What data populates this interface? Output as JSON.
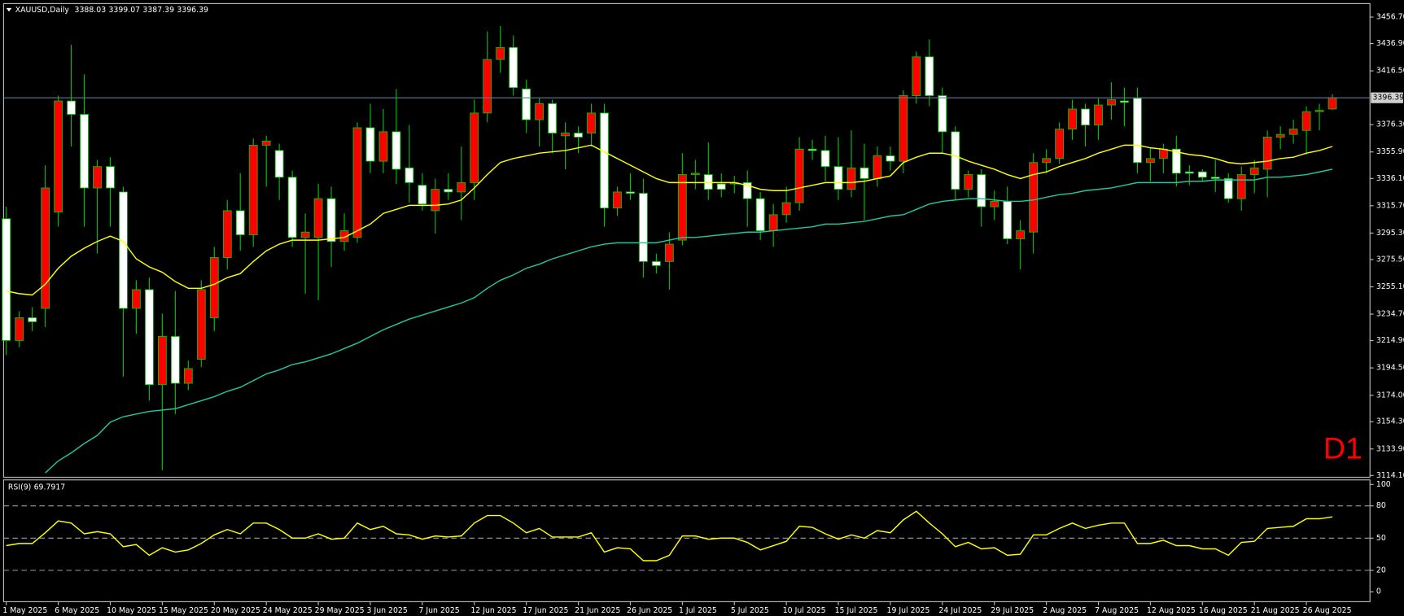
{
  "chart_data": [
    {
      "type": "candlestick",
      "title": "XAUUSD,Daily",
      "annotation": "D1",
      "up_color": "#ff0000",
      "down_color": "#ffffff",
      "wick_color": "#00c800",
      "bid_color": "#5f7d99",
      "categories": [
        "1 May 2025",
        null,
        null,
        null,
        "6 May 2025",
        null,
        null,
        null,
        "10 May 2025",
        null,
        null,
        null,
        "15 May 2025",
        null,
        null,
        null,
        "20 May 2025",
        null,
        null,
        null,
        "24 May 2025",
        null,
        null,
        null,
        "29 May 2025",
        null,
        null,
        null,
        "3 Jun 2025",
        null,
        null,
        null,
        "7 Jun 2025",
        null,
        null,
        null,
        "12 Jun 2025",
        null,
        null,
        null,
        "17 Jun 2025",
        null,
        null,
        null,
        "21 Jun 2025",
        null,
        null,
        null,
        "26 Jun 2025",
        null,
        null,
        null,
        "1 Jul 2025",
        null,
        null,
        null,
        "5 Jul 2025",
        null,
        null,
        null,
        "10 Jul 2025",
        null,
        null,
        null,
        "15 Jul 2025",
        null,
        null,
        null,
        "19 Jul 2025",
        null,
        null,
        null,
        "24 Jul 2025",
        null,
        null,
        null,
        "29 Jul 2025",
        null,
        null,
        null,
        "2 Aug 2025",
        null,
        null,
        null,
        "7 Aug 2025",
        null,
        null,
        null,
        "12 Aug 2025",
        null,
        null,
        null,
        "16 Aug 2025",
        null,
        null,
        null,
        "21 Aug 2025",
        null,
        null,
        null,
        "26 Aug 2025",
        null,
        null
      ],
      "open": [
        3306,
        3215,
        3232,
        3239,
        3311,
        3394,
        3384,
        3329,
        3345,
        3326,
        3239,
        3253,
        3182,
        3218,
        3183,
        3201,
        3232,
        3277,
        3312,
        3294,
        3361,
        3357,
        3337,
        3292,
        3292,
        3321,
        3289,
        3292,
        3374,
        3349,
        3371,
        3344,
        3331,
        3312,
        3328,
        3326,
        3333,
        3385,
        3425,
        3434,
        3403,
        3380,
        3392,
        3368,
        3370,
        3370,
        3385,
        3314,
        3326,
        3325,
        3274,
        3274,
        3290,
        3339,
        3339,
        3332,
        3332,
        3333,
        3321,
        3297,
        3309,
        3318,
        3358,
        3357,
        3345,
        3328,
        3344,
        3336,
        3353,
        3349,
        3398,
        3427,
        3398,
        3371,
        3328,
        3339,
        3315,
        3319,
        3291,
        3296,
        3348,
        3351,
        3373,
        3388,
        3376,
        3391,
        3394,
        3396,
        3348,
        3351,
        3358,
        3341,
        3341,
        3337,
        3336,
        3321,
        3339,
        3343,
        3367,
        3369,
        3372,
        3386,
        3388.03
      ],
      "high": [
        3315,
        3237,
        3240,
        3346,
        3398,
        3436,
        3414,
        3350,
        3352,
        3330,
        3260,
        3262,
        3235,
        3252,
        3200,
        3260,
        3285,
        3320,
        3340,
        3366,
        3368,
        3362,
        3342,
        3310,
        3332,
        3330,
        3310,
        3378,
        3392,
        3388,
        3403,
        3376,
        3340,
        3336,
        3340,
        3360,
        3395,
        3446,
        3450,
        3443,
        3410,
        3396,
        3395,
        3378,
        3375,
        3392,
        3392,
        3330,
        3340,
        3336,
        3280,
        3296,
        3355,
        3350,
        3363,
        3340,
        3338,
        3342,
        3326,
        3317,
        3330,
        3367,
        3365,
        3368,
        3367,
        3372,
        3362,
        3360,
        3360,
        3402,
        3431,
        3440,
        3404,
        3375,
        3342,
        3343,
        3327,
        3330,
        3305,
        3355,
        3358,
        3378,
        3395,
        3392,
        3396,
        3408,
        3404,
        3404,
        3359,
        3362,
        3368,
        3346,
        3343,
        3350,
        3340,
        3345,
        3350,
        3372,
        3375,
        3380,
        3390,
        3392,
        3399.07
      ],
      "low": [
        3204,
        3210,
        3222,
        3225,
        3300,
        3360,
        3300,
        3280,
        3300,
        3188,
        3220,
        3170,
        3118,
        3160,
        3178,
        3195,
        3222,
        3268,
        3282,
        3285,
        3330,
        3320,
        3285,
        3250,
        3245,
        3270,
        3282,
        3288,
        3340,
        3340,
        3332,
        3318,
        3312,
        3295,
        3320,
        3305,
        3320,
        3378,
        3415,
        3398,
        3370,
        3360,
        3355,
        3343,
        3355,
        3360,
        3300,
        3308,
        3320,
        3262,
        3265,
        3253,
        3286,
        3328,
        3320,
        3322,
        3325,
        3300,
        3290,
        3285,
        3303,
        3312,
        3350,
        3334,
        3320,
        3322,
        3305,
        3330,
        3342,
        3340,
        3392,
        3390,
        3355,
        3320,
        3322,
        3300,
        3305,
        3287,
        3268,
        3280,
        3340,
        3347,
        3365,
        3360,
        3365,
        3380,
        3375,
        3340,
        3334,
        3340,
        3330,
        3331,
        3334,
        3326,
        3318,
        3312,
        3325,
        3322,
        3358,
        3362,
        3354,
        3372,
        3387.39
      ],
      "close": [
        3215,
        3232,
        3229,
        3329,
        3394,
        3384,
        3329,
        3345,
        3329,
        3239,
        3253,
        3182,
        3218,
        3183,
        3194,
        3253,
        3277,
        3312,
        3294,
        3361,
        3364,
        3337,
        3292,
        3296,
        3321,
        3289,
        3297,
        3374,
        3349,
        3371,
        3343,
        3333,
        3317,
        3328,
        3326,
        3333,
        3385,
        3425,
        3434,
        3404,
        3380,
        3392,
        3370,
        3370,
        3367,
        3385,
        3314,
        3326,
        3325,
        3274,
        3271,
        3287,
        3339,
        3340,
        3328,
        3328,
        3333,
        3321,
        3297,
        3309,
        3318,
        3358,
        3357,
        3345,
        3328,
        3344,
        3336,
        3353,
        3349,
        3398,
        3427,
        3398,
        3371,
        3328,
        3339,
        3315,
        3319,
        3291,
        3297,
        3348,
        3351,
        3373,
        3388,
        3376,
        3391,
        3395,
        3393,
        3348,
        3351,
        3358,
        3340,
        3340,
        3337,
        3336,
        3321,
        3339,
        3344,
        3367,
        3369,
        3373,
        3386,
        3387,
        3396.39
      ],
      "overlays": [
        {
          "color": "#ffff00",
          "values": [
            3252,
            3250,
            3249,
            3257,
            3269,
            3278,
            3284,
            3289,
            3293,
            3289,
            3276,
            3270,
            3266,
            3259,
            3254,
            3254,
            3257,
            3262,
            3265,
            3274,
            3282,
            3287,
            3290,
            3290,
            3290,
            3291,
            3292,
            3297,
            3302,
            3310,
            3313,
            3316,
            3316,
            3316,
            3317,
            3320,
            3329,
            3339,
            3348,
            3351,
            3353,
            3355,
            3356,
            3357,
            3359,
            3361,
            3356,
            3351,
            3346,
            3341,
            3336,
            3333,
            3333,
            3333,
            3333,
            3333,
            3333,
            3331,
            3328,
            3327,
            3327,
            3329,
            3331,
            3333,
            3333,
            3333,
            3334,
            3336,
            3338,
            3348,
            3352,
            3355,
            3355,
            3353,
            3349,
            3346,
            3343,
            3339,
            3336,
            3339,
            3341,
            3345,
            3348,
            3351,
            3355,
            3358,
            3361,
            3361,
            3359,
            3358,
            3356,
            3354,
            3353,
            3351,
            3348,
            3347,
            3348,
            3349,
            3351,
            3352,
            3355,
            3357,
            3360
          ]
        },
        {
          "color": "#20c8a0",
          "values": [
            null,
            null,
            null,
            3116,
            3125,
            3131,
            3138,
            3144,
            3154,
            3158,
            3160,
            3162,
            3163,
            3164,
            3167,
            3170,
            3173,
            3177,
            3180,
            3185,
            3190,
            3193,
            3197,
            3199,
            3202,
            3205,
            3209,
            3213,
            3218,
            3223,
            3227,
            3231,
            3234,
            3237,
            3240,
            3243,
            3247,
            3254,
            3260,
            3264,
            3269,
            3272,
            3276,
            3279,
            3282,
            3285,
            3287,
            3288,
            3288,
            3288,
            3288,
            3290,
            3292,
            3292,
            3293,
            3294,
            3295,
            3296,
            3296,
            3297,
            3298,
            3299,
            3300,
            3302,
            3302,
            3303,
            3304,
            3306,
            3308,
            3309,
            3313,
            3317,
            3319,
            3320,
            3321,
            3321,
            3320,
            3319,
            3319,
            3320,
            3322,
            3324,
            3325,
            3327,
            3328,
            3329,
            3331,
            3333,
            3333,
            3333,
            3333,
            3334,
            3334,
            3335,
            3335,
            3335,
            3335,
            3337,
            3337,
            3338,
            3339,
            3341,
            3343
          ]
        }
      ],
      "ylim": [
        3112.8,
        3466.8
      ],
      "yticks": [
        {
          "value": 3456.7,
          "label": "3456.70"
        },
        {
          "value": 3436.9,
          "label": "3436.90"
        },
        {
          "value": 3416.5,
          "label": "3416.50"
        },
        {
          "value": 3376.3,
          "label": "3376.30"
        },
        {
          "value": 3355.9,
          "label": "3355.90"
        },
        {
          "value": 3336.1,
          "label": "3336.10"
        },
        {
          "value": 3315.7,
          "label": "3315.70"
        },
        {
          "value": 3295.3,
          "label": "3295.30"
        },
        {
          "value": 3275.5,
          "label": "3275.50"
        },
        {
          "value": 3255.1,
          "label": "3255.10"
        },
        {
          "value": 3234.7,
          "label": "3234.70"
        },
        {
          "value": 3214.9,
          "label": "3214.90"
        },
        {
          "value": 3194.5,
          "label": "3194.50"
        },
        {
          "value": 3174,
          "label": "3174.00"
        },
        {
          "value": 3154.3,
          "label": "3154.30"
        },
        {
          "value": 3133.9,
          "label": "3133.90"
        },
        {
          "value": 3114.1,
          "label": "3114.10"
        }
      ]
    },
    {
      "type": "line",
      "title": "RSI(9)",
      "color": "#ffff00",
      "values": [
        43,
        45,
        45,
        55,
        66,
        64,
        54,
        56,
        54,
        42,
        44,
        34,
        41,
        37,
        39,
        45,
        53,
        58,
        54,
        64,
        64,
        58,
        50,
        50,
        54,
        49,
        50,
        64,
        58,
        61,
        54,
        53,
        49,
        52,
        51,
        52,
        64,
        71,
        71,
        64,
        55,
        59,
        51,
        51,
        51,
        55,
        37,
        41,
        40,
        29,
        29,
        34,
        52,
        52,
        49,
        50,
        50,
        46,
        39,
        43,
        47,
        61,
        60,
        54,
        49,
        53,
        50,
        57,
        55,
        67,
        75,
        64,
        54,
        42,
        46,
        40,
        41,
        34,
        35,
        53,
        53,
        59,
        64,
        59,
        62,
        64,
        64,
        45,
        45,
        48,
        43,
        43,
        40,
        40,
        34,
        46,
        47,
        59,
        60,
        61,
        68,
        68,
        69.7917
      ],
      "ylim": [
        -9.2,
        104.2
      ],
      "yticks": [
        100,
        80,
        50,
        20,
        0
      ],
      "levels": [
        80,
        50,
        20
      ]
    }
  ]
}
